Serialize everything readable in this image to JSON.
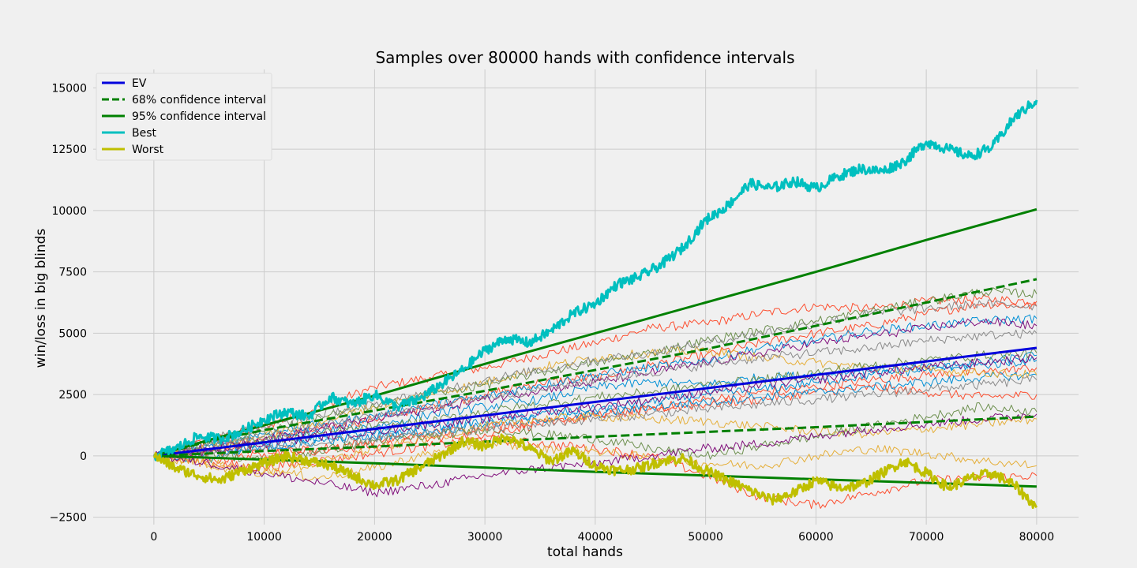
{
  "chart_data": {
    "type": "line",
    "title": "Samples over 80000 hands with confidence intervals",
    "xlabel": "total hands",
    "ylabel": "win/loss in big blinds",
    "xlim": [
      -5500,
      83800
    ],
    "ylim": [
      -2800,
      15750
    ],
    "xticks": [
      0,
      10000,
      20000,
      30000,
      40000,
      50000,
      60000,
      70000,
      80000
    ],
    "yticks": [
      -2500,
      0,
      2500,
      5000,
      7500,
      10000,
      12500,
      15000
    ],
    "grid": true,
    "legend_position": "top-left",
    "series": [
      {
        "name": "EV",
        "color": "#0000dd",
        "style": "solid",
        "x": [
          0,
          80000
        ],
        "y": [
          0,
          4400
        ]
      },
      {
        "name": "68% confidence interval",
        "color": "#008000",
        "style": "dashed",
        "x": [
          0,
          5000,
          10000,
          20000,
          30000,
          40000,
          50000,
          60000,
          70000,
          80000
        ],
        "y": [
          0,
          600,
          1050,
          1850,
          2650,
          3500,
          4350,
          5300,
          6250,
          7200
        ]
      },
      {
        "name": "",
        "color": "#008000",
        "style": "dashed",
        "x": [
          0,
          10000,
          20000,
          40000,
          60000,
          80000
        ],
        "y": [
          0,
          200,
          380,
          780,
          1170,
          1600
        ]
      },
      {
        "name": "95% confidence interval",
        "color": "#008000",
        "style": "solid",
        "x": [
          0,
          5000,
          10000,
          20000,
          30000,
          40000,
          50000,
          60000,
          70000,
          80000
        ],
        "y": [
          0,
          650,
          1250,
          2450,
          3750,
          5000,
          6250,
          7500,
          8800,
          10050
        ]
      },
      {
        "name": "",
        "color": "#008000",
        "style": "solid",
        "x": [
          0,
          20000,
          40000,
          60000,
          80000
        ],
        "y": [
          0,
          -300,
          -650,
          -950,
          -1250
        ]
      },
      {
        "name": "Best",
        "color": "#00bfbf",
        "style": "solid",
        "x": [
          0,
          2000,
          4000,
          6000,
          8000,
          10000,
          12000,
          14000,
          16000,
          18000,
          20000,
          22000,
          24000,
          26000,
          28000,
          30000,
          32000,
          34000,
          36000,
          38000,
          40000,
          42000,
          44000,
          46000,
          48000,
          50000,
          52000,
          54000,
          56000,
          58000,
          60000,
          62000,
          64000,
          66000,
          68000,
          70000,
          72000,
          74000,
          76000,
          78000,
          80000
        ],
        "y": [
          0,
          300,
          800,
          700,
          1000,
          1500,
          1800,
          1600,
          2400,
          2100,
          2500,
          2000,
          2300,
          2900,
          3500,
          4300,
          4800,
          4600,
          5100,
          5800,
          6200,
          7000,
          7300,
          7800,
          8500,
          9600,
          10200,
          11100,
          10900,
          11200,
          10900,
          11400,
          11700,
          11600,
          12000,
          12800,
          12500,
          12200,
          12600,
          13800,
          14500
        ]
      },
      {
        "name": "Worst",
        "color": "#bfbf00",
        "style": "solid",
        "x": [
          0,
          2000,
          4000,
          6000,
          8000,
          10000,
          12000,
          14000,
          16000,
          18000,
          20000,
          22000,
          24000,
          26000,
          28000,
          30000,
          32000,
          34000,
          36000,
          38000,
          40000,
          42000,
          44000,
          46000,
          48000,
          50000,
          52000,
          54000,
          56000,
          58000,
          60000,
          62000,
          64000,
          66000,
          68000,
          70000,
          72000,
          74000,
          76000,
          78000,
          80000
        ],
        "y": [
          0,
          -500,
          -800,
          -1000,
          -600,
          -300,
          0,
          -200,
          -400,
          -800,
          -1200,
          -1000,
          -500,
          0,
          600,
          400,
          800,
          300,
          -200,
          200,
          -400,
          -600,
          -500,
          -200,
          -100,
          -600,
          -1000,
          -1400,
          -1800,
          -1500,
          -1000,
          -1300,
          -1200,
          -700,
          -200,
          -700,
          -1300,
          -900,
          -700,
          -1200,
          -2100
        ]
      }
    ],
    "samples": [
      {
        "color": "#fc4f30",
        "y": [
          0,
          600,
          1200,
          2000,
          2800,
          3200,
          3600,
          4100,
          4600,
          5200,
          5400,
          5800,
          6100,
          6000,
          6300,
          6400,
          6300
        ]
      },
      {
        "color": "#fc4f30",
        "y": [
          0,
          300,
          700,
          1100,
          1500,
          2000,
          2500,
          3000,
          3200,
          3700,
          4100,
          4600,
          5000,
          5300,
          5800,
          6200,
          6100
        ]
      },
      {
        "color": "#fc4f30",
        "y": [
          0,
          200,
          300,
          200,
          400,
          700,
          900,
          1300,
          1600,
          1900,
          2300,
          2600,
          2800,
          3100,
          3300,
          3400,
          3600
        ]
      },
      {
        "color": "#fc4f30",
        "y": [
          0,
          -200,
          100,
          300,
          600,
          900,
          1200,
          1400,
          1700,
          1900,
          2100,
          2300,
          2600,
          2800,
          2600,
          2400,
          2500
        ]
      },
      {
        "color": "#fc4f30",
        "y": [
          0,
          -300,
          -500,
          -200,
          100,
          400,
          700,
          500,
          300,
          0,
          -800,
          -1700,
          -2000,
          -1500,
          -1000,
          -900,
          -800
        ]
      },
      {
        "color": "#008fd5",
        "y": [
          0,
          500,
          900,
          1300,
          1600,
          2100,
          2400,
          2900,
          3300,
          3600,
          3900,
          4400,
          4700,
          5100,
          5300,
          5500,
          5600
        ]
      },
      {
        "color": "#008fd5",
        "y": [
          0,
          200,
          400,
          700,
          900,
          1200,
          1400,
          1700,
          1900,
          2200,
          2500,
          2700,
          3000,
          3300,
          3500,
          3800,
          4100
        ]
      },
      {
        "color": "#008fd5",
        "y": [
          0,
          400,
          600,
          1000,
          1200,
          1700,
          2000,
          2300,
          2800,
          3000,
          2900,
          3200,
          3300,
          3500,
          3600,
          3700,
          3900
        ]
      },
      {
        "color": "#008fd5",
        "y": [
          0,
          -100,
          300,
          600,
          800,
          1000,
          1300,
          1500,
          1700,
          2000,
          2200,
          2400,
          2600,
          2800,
          3000,
          3200,
          3300
        ]
      },
      {
        "color": "#e5ae38",
        "y": [
          0,
          -400,
          -700,
          -300,
          300,
          700,
          1200,
          1500,
          1600,
          1500,
          1400,
          1200,
          1000,
          900,
          1100,
          1300,
          1500
        ]
      },
      {
        "color": "#e5ae38",
        "y": [
          0,
          300,
          800,
          1400,
          2000,
          2500,
          3000,
          3600,
          4000,
          4200,
          4300,
          4000,
          3800,
          3600,
          3500,
          3400,
          3300
        ]
      },
      {
        "color": "#e5ae38",
        "y": [
          0,
          -300,
          -600,
          -900,
          -500,
          100,
          500,
          300,
          200,
          -100,
          -300,
          -400,
          0,
          300,
          100,
          -200,
          -400
        ]
      },
      {
        "color": "#6d904f",
        "y": [
          0,
          500,
          1000,
          1600,
          2000,
          2500,
          2900,
          3400,
          3800,
          4200,
          4700,
          5100,
          5500,
          5900,
          6300,
          6700,
          6600
        ]
      },
      {
        "color": "#6d904f",
        "y": [
          0,
          300,
          600,
          900,
          1200,
          1400,
          1800,
          2100,
          2400,
          2600,
          2900,
          3100,
          3400,
          3700,
          3900,
          4100,
          4200
        ]
      },
      {
        "color": "#6d904f",
        "y": [
          0,
          100,
          -200,
          200,
          600,
          800,
          1100,
          900,
          700,
          300,
          0,
          400,
          800,
          1200,
          1600,
          2000,
          1800
        ]
      },
      {
        "color": "#810f7c",
        "y": [
          0,
          300,
          700,
          1100,
          1500,
          1900,
          2300,
          2700,
          3000,
          3400,
          3800,
          4200,
          4600,
          4900,
          5200,
          5500,
          5300
        ]
      },
      {
        "color": "#810f7c",
        "y": [
          0,
          200,
          500,
          800,
          1000,
          1300,
          1500,
          1800,
          2000,
          2300,
          2600,
          2900,
          3100,
          3400,
          3600,
          3800,
          4000
        ]
      },
      {
        "color": "#810f7c",
        "y": [
          0,
          -300,
          -700,
          -1100,
          -1500,
          -1200,
          -800,
          -500,
          -300,
          0,
          300,
          500,
          800,
          1100,
          1300,
          1500,
          1700
        ]
      },
      {
        "color": "#8b8b8b",
        "y": [
          0,
          700,
          1200,
          1700,
          2100,
          2600,
          3100,
          3500,
          3900,
          4200,
          4600,
          5000,
          5400,
          5800,
          6000,
          6200,
          6100
        ]
      },
      {
        "color": "#8b8b8b",
        "y": [
          0,
          400,
          800,
          1200,
          1600,
          2000,
          2400,
          2700,
          3100,
          3400,
          3700,
          4000,
          4200,
          4400,
          4700,
          4900,
          5000
        ]
      },
      {
        "color": "#8b8b8b",
        "y": [
          0,
          100,
          300,
          500,
          700,
          900,
          1100,
          1300,
          1500,
          1700,
          1900,
          2100,
          2300,
          2500,
          2700,
          2900,
          3100
        ]
      }
    ]
  }
}
